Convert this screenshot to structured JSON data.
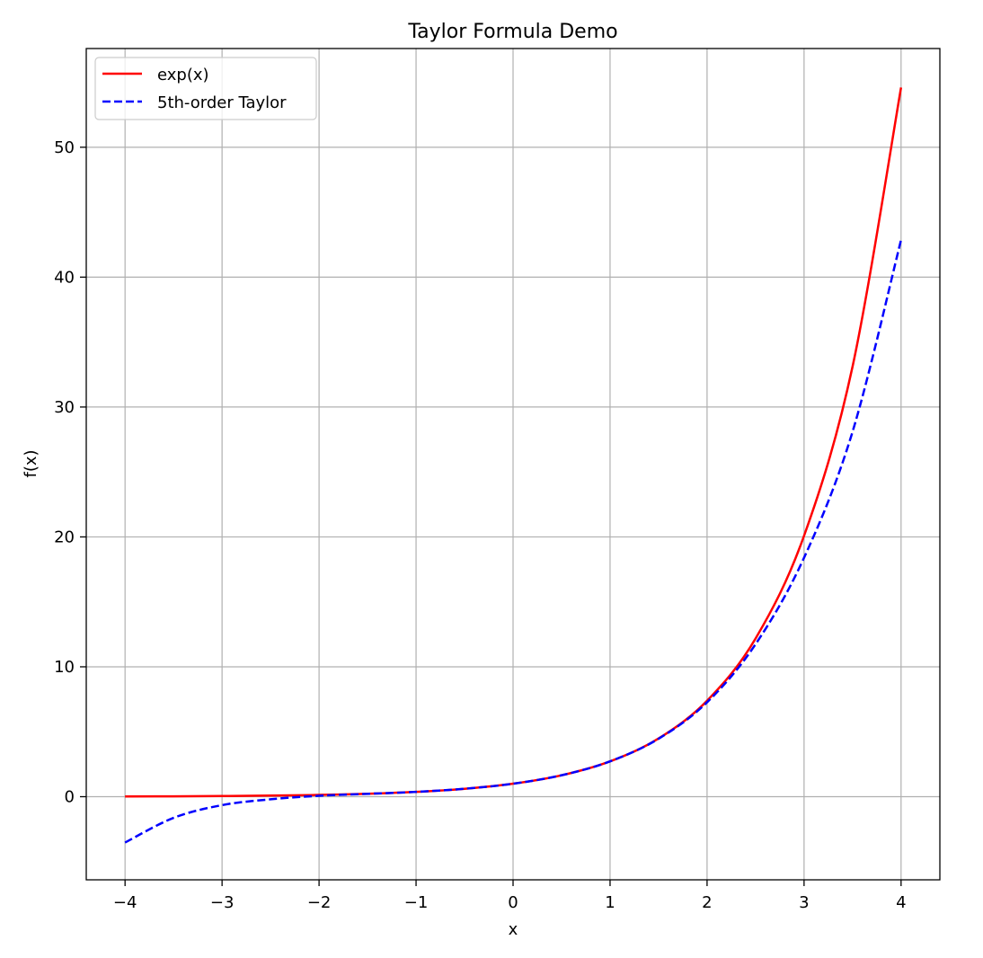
{
  "chart_data": {
    "type": "line",
    "title": "Taylor Formula Demo",
    "xlabel": "x",
    "ylabel": "f(x)",
    "xlim": [
      -4.4,
      4.4
    ],
    "ylim": [
      -6.4,
      57.6
    ],
    "grid": true,
    "legend_position": "top-left",
    "x_ticks": [
      -4,
      -3,
      -2,
      -1,
      0,
      1,
      2,
      3,
      4
    ],
    "x_tick_labels": [
      "−4",
      "−3",
      "−2",
      "−1",
      "0",
      "1",
      "2",
      "3",
      "4"
    ],
    "y_ticks": [
      0,
      10,
      20,
      30,
      40,
      50
    ],
    "y_tick_labels": [
      "0",
      "10",
      "20",
      "30",
      "40",
      "50"
    ],
    "x": [
      -4,
      -3.5,
      -3,
      -2.5,
      -2,
      -1.5,
      -1,
      -0.5,
      0,
      0.5,
      1,
      1.5,
      2,
      2.5,
      3,
      3.5,
      4
    ],
    "series": [
      {
        "name": "exp(x)",
        "color": "#ff0000",
        "style": "solid",
        "values": [
          0.018,
          0.03,
          0.05,
          0.082,
          0.135,
          0.223,
          0.368,
          0.607,
          1.0,
          1.649,
          2.718,
          4.482,
          7.389,
          12.18,
          20.09,
          33.12,
          54.6
        ]
      },
      {
        "name": "5th-order Taylor",
        "color": "#0000ff",
        "style": "dashed",
        "values": [
          -3.53,
          -1.63,
          -0.65,
          -0.2,
          0.07,
          0.22,
          0.37,
          0.61,
          1.0,
          1.65,
          2.72,
          4.46,
          7.27,
          11.74,
          18.4,
          28.1,
          42.87
        ]
      }
    ]
  }
}
